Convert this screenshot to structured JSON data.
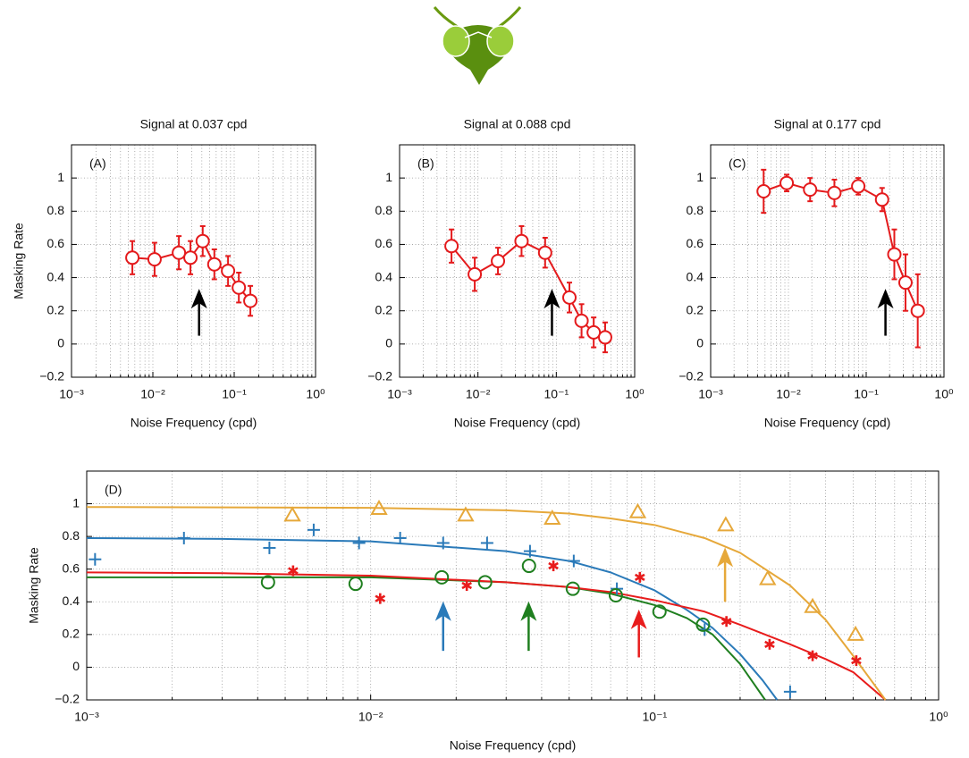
{
  "chart_data": [
    {
      "type": "line",
      "title": "Signal at 0.037 cpd",
      "panel_label": "(A)",
      "x_label": "Noise Frequency (cpd)",
      "y_label": "Masking Rate",
      "x_scale": "log",
      "grid": true,
      "xlim": [
        0.001,
        1
      ],
      "ylim": [
        -0.2,
        1.2
      ],
      "xticks": [
        {
          "value": 0.001,
          "label": "10⁻³"
        },
        {
          "value": 0.01,
          "label": "10⁻²"
        },
        {
          "value": 0.1,
          "label": "10⁻¹"
        },
        {
          "value": 1,
          "label": "10⁰"
        }
      ],
      "yticks": [
        {
          "value": -0.2,
          "label": "−0.2"
        },
        0,
        0.2,
        0.4,
        0.6,
        0.8,
        1
      ],
      "arrow_x": 0.037,
      "series": [
        {
          "color": "#e41a1c",
          "x": [
            0.0056,
            0.0105,
            0.0209,
            0.029,
            0.041,
            0.057,
            0.084,
            0.114,
            0.158
          ],
          "values": [
            0.52,
            0.51,
            0.55,
            0.52,
            0.62,
            0.48,
            0.44,
            0.34,
            0.26
          ],
          "errors": [
            0.1,
            0.1,
            0.1,
            0.1,
            0.09,
            0.09,
            0.09,
            0.09,
            0.09
          ]
        }
      ]
    },
    {
      "type": "line",
      "title": "Signal at 0.088 cpd",
      "panel_label": "(B)",
      "x_label": "Noise Frequency (cpd)",
      "x_scale": "log",
      "grid": true,
      "xlim": [
        0.001,
        1
      ],
      "ylim": [
        -0.2,
        1.2
      ],
      "xticks": [
        {
          "value": 0.001,
          "label": "10⁻³"
        },
        {
          "value": 0.01,
          "label": "10⁻²"
        },
        {
          "value": 0.1,
          "label": "10⁻¹"
        },
        {
          "value": 1,
          "label": "10⁰"
        }
      ],
      "yticks": [
        {
          "value": -0.2,
          "label": "−0.2"
        },
        0,
        0.2,
        0.4,
        0.6,
        0.8,
        1
      ],
      "arrow_x": 0.088,
      "series": [
        {
          "color": "#e41a1c",
          "x": [
            0.0046,
            0.0091,
            0.018,
            0.036,
            0.072,
            0.147,
            0.21,
            0.3,
            0.42
          ],
          "values": [
            0.59,
            0.42,
            0.5,
            0.62,
            0.55,
            0.28,
            0.14,
            0.07,
            0.04
          ],
          "errors": [
            0.1,
            0.1,
            0.08,
            0.09,
            0.09,
            0.09,
            0.1,
            0.09,
            0.09
          ]
        }
      ]
    },
    {
      "type": "line",
      "title": "Signal at 0.177 cpd",
      "panel_label": "(C)",
      "x_label": "Noise Frequency (cpd)",
      "x_scale": "log",
      "grid": true,
      "xlim": [
        0.001,
        1
      ],
      "ylim": [
        -0.2,
        1.2
      ],
      "xticks": [
        {
          "value": 0.001,
          "label": "10⁻³"
        },
        {
          "value": 0.01,
          "label": "10⁻²"
        },
        {
          "value": 0.1,
          "label": "10⁻¹"
        },
        {
          "value": 1,
          "label": "10⁰"
        }
      ],
      "yticks": [
        {
          "value": -0.2,
          "label": "−0.2"
        },
        0,
        0.2,
        0.4,
        0.6,
        0.8,
        1
      ],
      "arrow_x": 0.177,
      "series": [
        {
          "color": "#e41a1c",
          "x": [
            0.0048,
            0.0095,
            0.019,
            0.039,
            0.079,
            0.16,
            0.23,
            0.32,
            0.46
          ],
          "values": [
            0.92,
            0.97,
            0.93,
            0.91,
            0.95,
            0.87,
            0.54,
            0.37,
            0.2
          ],
          "errors": [
            0.13,
            0.05,
            0.07,
            0.08,
            0.05,
            0.07,
            0.15,
            0.17,
            0.22
          ]
        }
      ]
    },
    {
      "type": "scatter",
      "panel_label": "(D)",
      "x_label": "Noise Frequency (cpd)",
      "y_label": "Masking Rate",
      "x_scale": "log",
      "grid": true,
      "xlim": [
        0.001,
        1
      ],
      "ylim": [
        -0.2,
        1.2
      ],
      "xticks": [
        {
          "value": 0.001,
          "label": "10⁻³"
        },
        {
          "value": 0.01,
          "label": "10⁻²"
        },
        {
          "value": 0.1,
          "label": "10⁻¹"
        },
        {
          "value": 1,
          "label": "10⁰"
        }
      ],
      "yticks": [
        {
          "value": -0.2,
          "label": "−0.2"
        },
        0,
        0.2,
        0.4,
        0.6,
        0.8,
        1
      ],
      "series": [
        {
          "color": "#2a7ab9",
          "marker": "plus",
          "arrow_x": 0.018,
          "x": [
            0.00107,
            0.0022,
            0.0044,
            0.0063,
            0.0091,
            0.0127,
            0.018,
            0.0257,
            0.0364,
            0.0519,
            0.0736,
            0.15,
            0.3
          ],
          "values": [
            0.66,
            0.79,
            0.73,
            0.84,
            0.76,
            0.79,
            0.76,
            0.76,
            0.71,
            0.65,
            0.48,
            0.23,
            -0.15
          ],
          "fit_x": [
            0.001,
            0.003,
            0.01,
            0.03,
            0.05,
            0.07,
            0.1,
            0.13,
            0.16,
            0.2,
            0.24,
            0.27
          ],
          "fit_values": [
            0.79,
            0.785,
            0.77,
            0.71,
            0.65,
            0.58,
            0.47,
            0.35,
            0.24,
            0.08,
            -0.08,
            -0.2
          ]
        },
        {
          "color": "#1f7f1f",
          "marker": "circle",
          "arrow_x": 0.036,
          "x": [
            0.00435,
            0.00885,
            0.0178,
            0.0253,
            0.0361,
            0.0515,
            0.073,
            0.104,
            0.148
          ],
          "values": [
            0.52,
            0.51,
            0.55,
            0.52,
            0.62,
            0.48,
            0.44,
            0.34,
            0.26
          ],
          "fit_x": [
            0.001,
            0.003,
            0.01,
            0.03,
            0.05,
            0.07,
            0.1,
            0.13,
            0.16,
            0.2,
            0.245
          ],
          "fit_values": [
            0.55,
            0.55,
            0.55,
            0.52,
            0.49,
            0.45,
            0.38,
            0.3,
            0.2,
            0.02,
            -0.2
          ]
        },
        {
          "color": "#e81c1c",
          "marker": "asterisk",
          "arrow_x": 0.088,
          "x": [
            0.00533,
            0.0108,
            0.0218,
            0.044,
            0.0887,
            0.179,
            0.254,
            0.36,
            0.513
          ],
          "values": [
            0.59,
            0.42,
            0.5,
            0.62,
            0.55,
            0.28,
            0.14,
            0.07,
            0.04
          ],
          "fit_x": [
            0.001,
            0.003,
            0.01,
            0.03,
            0.05,
            0.07,
            0.1,
            0.15,
            0.2,
            0.3,
            0.4,
            0.5,
            0.65
          ],
          "fit_values": [
            0.58,
            0.575,
            0.56,
            0.52,
            0.49,
            0.46,
            0.41,
            0.34,
            0.26,
            0.14,
            0.05,
            -0.03,
            -0.2
          ]
        },
        {
          "color": "#e6a83a",
          "marker": "triangle",
          "arrow_x": 0.177,
          "x": [
            0.0053,
            0.0107,
            0.0216,
            0.0436,
            0.0872,
            0.178,
            0.25,
            0.36,
            0.51
          ],
          "values": [
            0.93,
            0.97,
            0.93,
            0.91,
            0.95,
            0.87,
            0.54,
            0.37,
            0.2
          ],
          "fit_x": [
            0.001,
            0.003,
            0.01,
            0.03,
            0.05,
            0.07,
            0.1,
            0.15,
            0.2,
            0.3,
            0.4,
            0.5,
            0.65
          ],
          "fit_values": [
            0.98,
            0.978,
            0.975,
            0.96,
            0.94,
            0.91,
            0.87,
            0.79,
            0.7,
            0.5,
            0.29,
            0.07,
            -0.2
          ]
        }
      ]
    }
  ]
}
